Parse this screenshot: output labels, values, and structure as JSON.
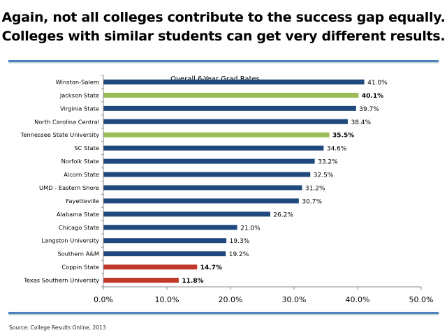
{
  "header": {
    "title_line1": "Again, not all colleges contribute to the success gap equally.",
    "title_line2": "Colleges with similar students can get very different results."
  },
  "footer": {
    "source": "Source: College Results Online, 2013"
  },
  "chart_data": {
    "type": "bar",
    "orientation": "horizontal",
    "title": "Overall 6-Year Grad Rates",
    "categories": [
      "Winston-Salem",
      "Jackson State",
      "Virginia State",
      "North Carolina Central",
      "Tennessee State University",
      "SC State",
      "Norfolk State",
      "Alcorn State",
      "UMD - Eastern Shore",
      "Fayetteville",
      "Alabama State",
      "Chicago State",
      "Langston University",
      "Southern A&M",
      "Coppin State",
      "Texas Southern University"
    ],
    "values": [
      41.0,
      40.1,
      39.7,
      38.4,
      35.5,
      34.6,
      33.2,
      32.5,
      31.2,
      30.7,
      26.2,
      21.0,
      19.3,
      19.2,
      14.7,
      11.8
    ],
    "data_labels": [
      "41.0%",
      "40.1%",
      "39.7%",
      "38.4%",
      "35.5%",
      "34.6%",
      "33.2%",
      "32.5%",
      "31.2%",
      "30.7%",
      "26.2%",
      "21.0%",
      "19.3%",
      "19.2%",
      "14.7%",
      "11.8%"
    ],
    "bar_groups": [
      "default",
      "highlight-green",
      "default",
      "default",
      "highlight-green",
      "default",
      "default",
      "default",
      "default",
      "default",
      "default",
      "default",
      "default",
      "default",
      "highlight-red",
      "highlight-red"
    ],
    "bold_labels": [
      false,
      true,
      false,
      false,
      true,
      false,
      false,
      false,
      false,
      false,
      false,
      false,
      false,
      false,
      true,
      true
    ],
    "colors": {
      "default": "#1f497d",
      "highlight-green": "#9bbb59",
      "highlight-red": "#c0392b"
    },
    "xlim": [
      0,
      50
    ],
    "xticks": [
      "0.0%",
      "10.0%",
      "20.0%",
      "30.0%",
      "40.0%",
      "50.0%"
    ],
    "xlabel": "",
    "ylabel": "",
    "grid": false,
    "legend": "none"
  }
}
